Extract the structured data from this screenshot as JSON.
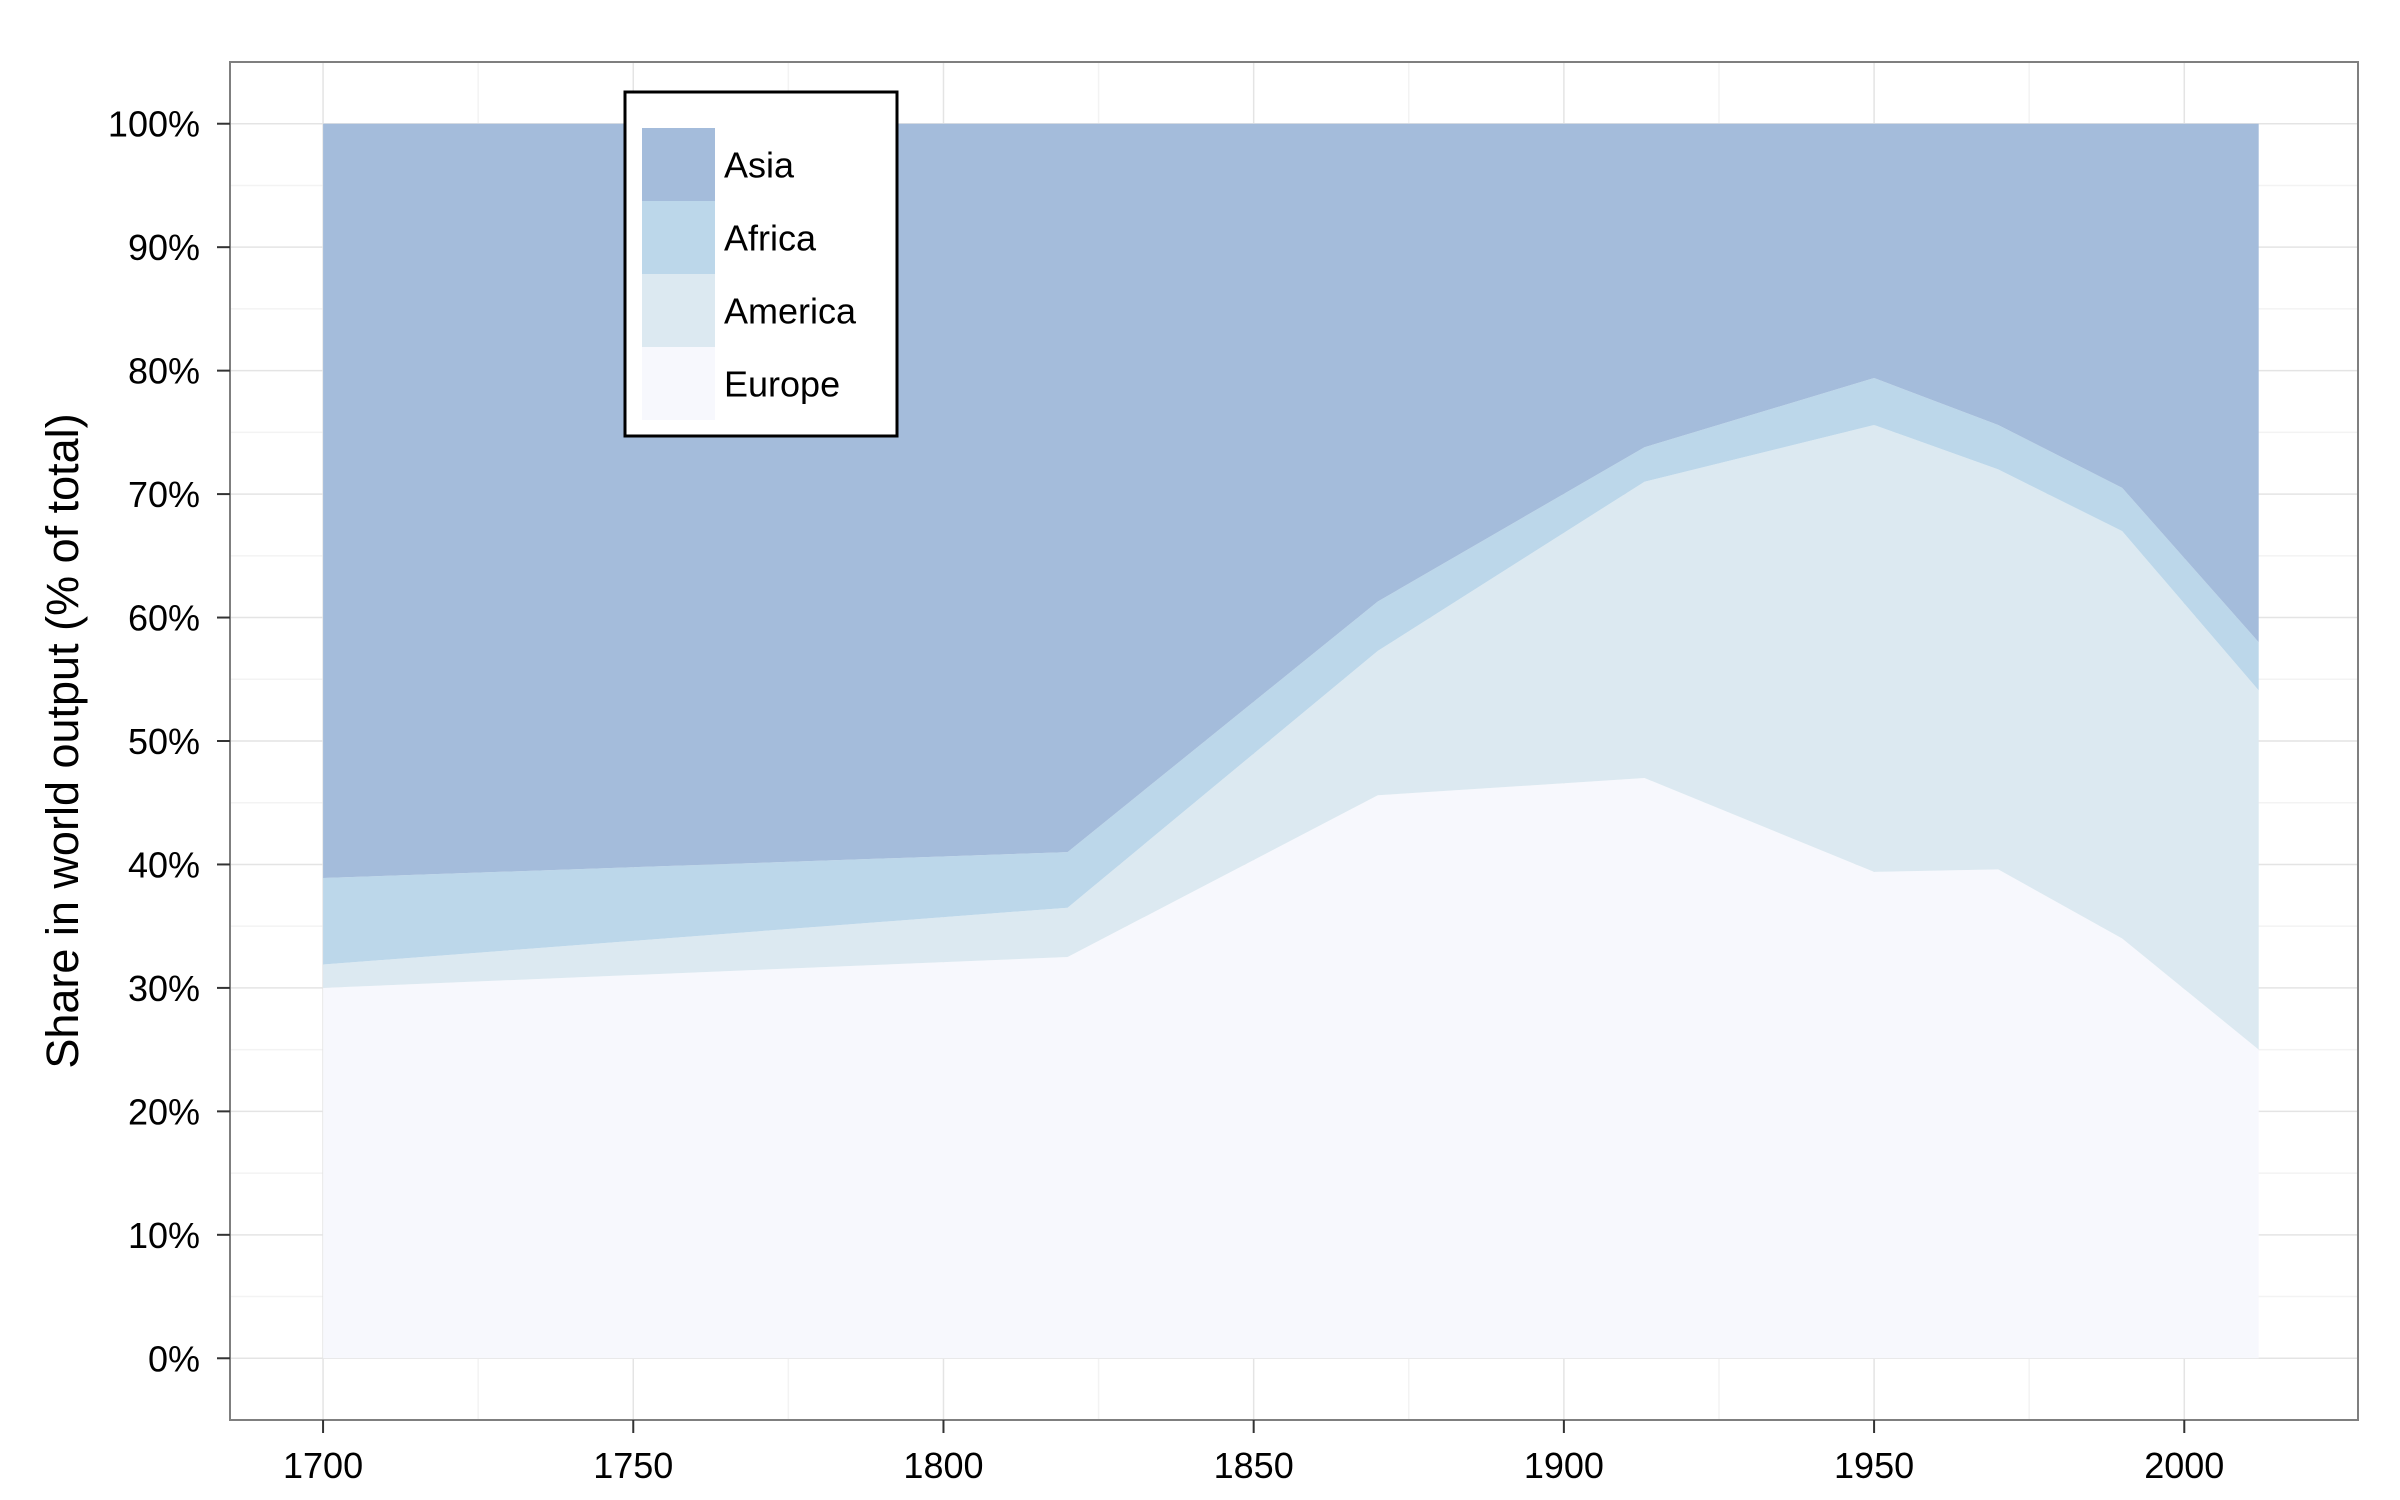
{
  "chart_data": {
    "type": "area",
    "stacked": true,
    "title": "",
    "xlabel": "",
    "ylabel": "Share in world output (% of total)",
    "x_ticks": [
      1700,
      1750,
      1800,
      1850,
      1900,
      1950,
      2000
    ],
    "x_tick_labels": [
      "1700",
      "1750",
      "1800",
      "1850",
      "1900",
      "1950",
      "2000"
    ],
    "y_ticks": [
      0,
      10,
      20,
      30,
      40,
      50,
      60,
      70,
      80,
      90,
      100
    ],
    "y_tick_labels": [
      "0%",
      "10%",
      "20%",
      "30%",
      "40%",
      "50%",
      "60%",
      "70%",
      "80%",
      "90%",
      "100%"
    ],
    "xlim": [
      1685,
      2028
    ],
    "ylim": [
      -5,
      105
    ],
    "grid": true,
    "legend_position": "top-left",
    "x": [
      1700,
      1820,
      1870,
      1913,
      1950,
      1970,
      1990,
      2012
    ],
    "series": [
      {
        "name": "Europe",
        "color": "#f7f8fd",
        "values": [
          30,
          32.5,
          45.6,
          47,
          39.4,
          39.6,
          34,
          25
        ]
      },
      {
        "name": "America",
        "color": "#dce9f1",
        "values": [
          1.9,
          4,
          11.7,
          24,
          36.2,
          32.4,
          33,
          29.1
        ]
      },
      {
        "name": "Africa",
        "color": "#bcd7ea",
        "values": [
          7,
          4.5,
          4,
          2.8,
          3.8,
          3.6,
          3.5,
          3.9
        ]
      },
      {
        "name": "Asia",
        "color": "#a4bcdb",
        "values": [
          61.1,
          59,
          38.7,
          26.2,
          20.6,
          24.4,
          29.5,
          42
        ]
      }
    ],
    "legend_order": [
      "Asia",
      "Africa",
      "America",
      "Europe"
    ]
  }
}
